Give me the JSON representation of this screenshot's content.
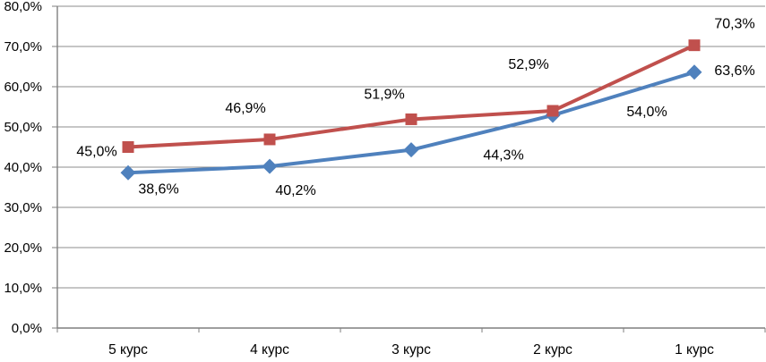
{
  "chart_data": {
    "type": "line",
    "title": "",
    "xlabel": "",
    "ylabel": "",
    "categories": [
      "5 курс",
      "4 курс",
      "3 курс",
      "2 курс",
      "1 курс"
    ],
    "y_axis": {
      "min": 0,
      "max": 80,
      "step": 10,
      "tick_labels": [
        "0,0%",
        "10,0%",
        "20,0%",
        "30,0%",
        "40,0%",
        "50,0%",
        "60,0%",
        "70,0%",
        "80,0%"
      ]
    },
    "grid": true,
    "legend_position": "none",
    "series": [
      {
        "id": "blue-diamond-series",
        "marker": "diamond",
        "color": "#4F81BD",
        "values": [
          38.6,
          40.2,
          44.3,
          52.9,
          63.6
        ],
        "labels": [
          "38,6%",
          "40,2%",
          "44,3%",
          "52,9%",
          "63,6%"
        ],
        "label_offsets": [
          {
            "dx": 34,
            "dy": 23
          },
          {
            "dx": 29,
            "dy": 32
          },
          {
            "dx": 103,
            "dy": 11
          },
          {
            "dx": -27,
            "dy": -52
          },
          {
            "dx": 45,
            "dy": 3
          }
        ]
      },
      {
        "id": "red-square-series",
        "marker": "square",
        "color": "#C0504D",
        "values": [
          45.0,
          46.9,
          51.9,
          54.0,
          70.3
        ],
        "labels": [
          "45,0%",
          "46,9%",
          "51,9%",
          "54,0%",
          "70,3%"
        ],
        "label_offsets": [
          {
            "dx": -35,
            "dy": 10
          },
          {
            "dx": -27,
            "dy": -30
          },
          {
            "dx": -30,
            "dy": -23
          },
          {
            "dx": 105,
            "dy": 6
          },
          {
            "dx": 45,
            "dy": -19
          }
        ]
      }
    ],
    "colors": {
      "gridline": "#8C8C8C",
      "axis": "#7F7F7F",
      "text": "#000000",
      "background": "#FFFFFF"
    }
  }
}
